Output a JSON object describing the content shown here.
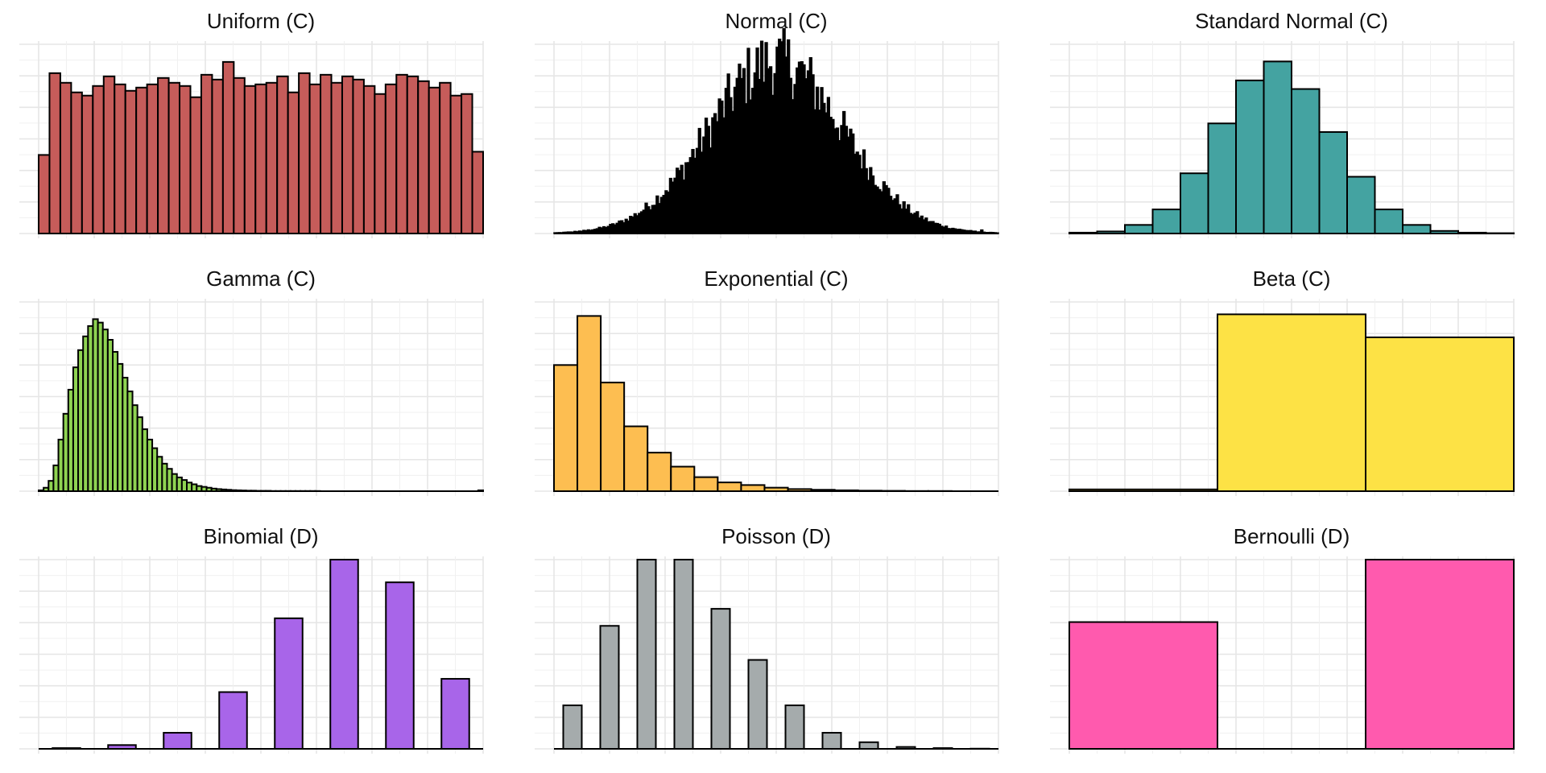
{
  "chart_data": [
    {
      "title": "Uniform (C)",
      "type": "bar",
      "fill": "#C65C5A",
      "grid": true,
      "ylim": [
        0,
        1.18
      ],
      "bars": [
        0.49,
        1.0,
        0.94,
        0.88,
        0.86,
        0.92,
        0.98,
        0.93,
        0.89,
        0.91,
        0.93,
        0.97,
        0.94,
        0.92,
        0.85,
        0.99,
        0.96,
        1.07,
        0.97,
        0.92,
        0.93,
        0.94,
        0.98,
        0.88,
        1.0,
        0.93,
        0.99,
        0.94,
        0.98,
        0.96,
        0.92,
        0.87,
        0.93,
        0.99,
        0.98,
        0.95,
        0.91,
        0.94,
        0.86,
        0.87,
        0.51
      ]
    },
    {
      "title": "Normal (C)",
      "type": "area",
      "fill": "#000000",
      "grid": true,
      "ylim": [
        0,
        1.1
      ],
      "density": {
        "mean": 0.5,
        "sd": 0.15,
        "bins": 200,
        "noise": 0.2
      }
    },
    {
      "title": "Standard Normal (C)",
      "type": "bar",
      "fill": "#44A3A1",
      "grid": true,
      "ylim": [
        0,
        1.1
      ],
      "bars": [
        0.005,
        0.012,
        0.05,
        0.14,
        0.35,
        0.64,
        0.89,
        1.0,
        0.84,
        0.59,
        0.33,
        0.14,
        0.05,
        0.015,
        0.005,
        0.002
      ]
    },
    {
      "title": "Gamma (C)",
      "type": "bar",
      "fill": "#8FD352",
      "grid": true,
      "ylim": [
        0,
        1.1
      ],
      "bars": [
        0.005,
        0.02,
        0.06,
        0.15,
        0.3,
        0.45,
        0.59,
        0.72,
        0.82,
        0.9,
        0.96,
        1.0,
        0.98,
        0.94,
        0.88,
        0.81,
        0.74,
        0.66,
        0.58,
        0.5,
        0.43,
        0.36,
        0.3,
        0.25,
        0.2,
        0.16,
        0.13,
        0.1,
        0.08,
        0.065,
        0.05,
        0.04,
        0.03,
        0.025,
        0.02,
        0.015,
        0.012,
        0.01,
        0.008,
        0.006,
        0.005,
        0.004,
        0.003,
        0.003,
        0.002,
        0.002,
        0.002,
        0.001,
        0.001,
        0.001,
        0.001,
        0.001,
        0.001,
        0.001,
        0.001,
        0.001,
        0.001,
        0.0,
        0.0,
        0.0,
        0.0,
        0.0,
        0.0,
        0.0,
        0.0,
        0.0,
        0.0,
        0.0,
        0.0,
        0.0,
        0.0,
        0.0,
        0.0,
        0.0,
        0.0,
        0.0,
        0.0,
        0.0,
        0.0,
        0.0,
        0.0,
        0.0,
        0.0,
        0.0,
        0.0,
        0.0,
        0.0,
        0.0,
        0.0,
        0.005
      ]
    },
    {
      "title": "Exponential (C)",
      "type": "bar",
      "fill": "#FDBE51",
      "grid": true,
      "ylim": [
        0,
        1.08
      ],
      "bars": [
        0.72,
        1.0,
        0.62,
        0.37,
        0.22,
        0.14,
        0.08,
        0.05,
        0.035,
        0.02,
        0.012,
        0.008,
        0.005,
        0.003,
        0.002,
        0.001,
        0.001,
        0.0,
        0.0
      ]
    },
    {
      "title": "Beta (C)",
      "type": "bar",
      "fill": "#FDE245",
      "grid": true,
      "ylim": [
        0,
        1.07
      ],
      "bars": [
        0.01,
        1.0,
        0.87
      ]
    },
    {
      "title": "Binomial (D)",
      "type": "bar",
      "fill": "#A865E9",
      "grid": true,
      "ylim": [
        0,
        1.0
      ],
      "bars": [
        0.004,
        0.02,
        0.085,
        0.3,
        0.69,
        1.0,
        0.88,
        0.37
      ],
      "bar_width": 0.5
    },
    {
      "title": "Poisson (D)",
      "type": "bar",
      "fill": "#A5ABAC",
      "grid": true,
      "ylim": [
        0,
        1.0
      ],
      "bars": [
        0.23,
        0.65,
        1.0,
        1.0,
        0.74,
        0.47,
        0.23,
        0.085,
        0.035,
        0.01,
        0.004,
        0.001
      ],
      "bar_width": 0.5
    },
    {
      "title": "Bernoulli (D)",
      "type": "bar",
      "fill": "#FF5AAE",
      "grid": true,
      "ylim": [
        0,
        1.0
      ],
      "bars": [
        0.67,
        0.0,
        1.0
      ]
    }
  ]
}
